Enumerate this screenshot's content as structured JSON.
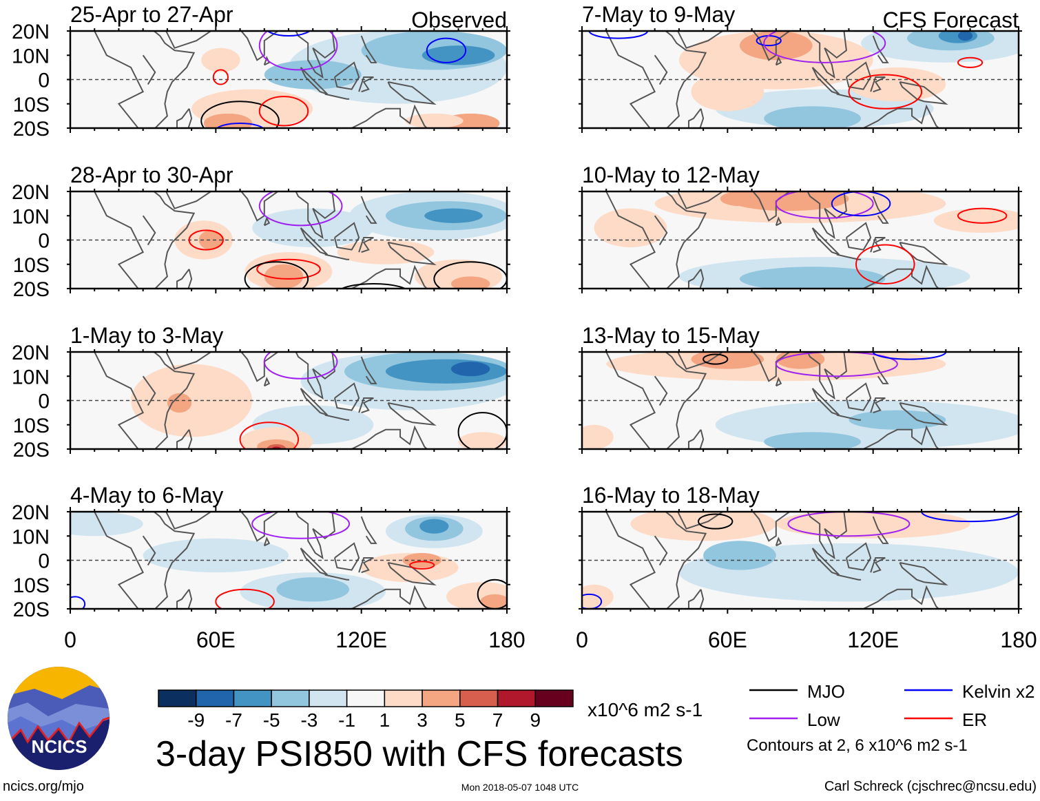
{
  "panels": [
    {
      "title": "25-Apr to 27-Apr",
      "tag": "Observed"
    },
    {
      "title": "28-Apr to 30-Apr"
    },
    {
      "title": "1-May to 3-May"
    },
    {
      "title": "4-May to 6-May"
    },
    {
      "title": "7-May to 9-May",
      "tag": "CFS Forecast"
    },
    {
      "title": "10-May to 12-May"
    },
    {
      "title": "13-May to 15-May"
    },
    {
      "title": "16-May to 18-May"
    }
  ],
  "lat_labels": [
    "20N",
    "10N",
    "0",
    "10S",
    "20S"
  ],
  "lon_labels": [
    "0",
    "60E",
    "120E",
    "180"
  ],
  "colorbar": {
    "colors": [
      "#0b2f5e",
      "#2166ac",
      "#4393c3",
      "#92c5de",
      "#d1e5f0",
      "#f7f7f7",
      "#fddbc7",
      "#f4a582",
      "#d6604d",
      "#b2182b",
      "#67001f"
    ],
    "labels": [
      "-9",
      "-7",
      "-5",
      "-3",
      "-1",
      "1",
      "3",
      "5",
      "7",
      "9"
    ],
    "units": "x10^6 m2 s-1"
  },
  "title": "3-day PSI850 with CFS forecasts",
  "contour_legend": [
    {
      "label": "MJO",
      "color": "#000000"
    },
    {
      "label": "Kelvin x2",
      "color": "#0000ff"
    },
    {
      "label": "Low",
      "color": "#a020f0"
    },
    {
      "label": "ER",
      "color": "#ff0000"
    }
  ],
  "contour_note": "Contours at 2, 6 x10^6 m2 s-1",
  "logo_text": "NCICS",
  "footer": {
    "url": "ncics.org/mjo",
    "timestamp": "Mon 2018-05-07 1048 UTC",
    "credit": "Carl Schreck (cjschrec@ncsu.edu)"
  }
}
